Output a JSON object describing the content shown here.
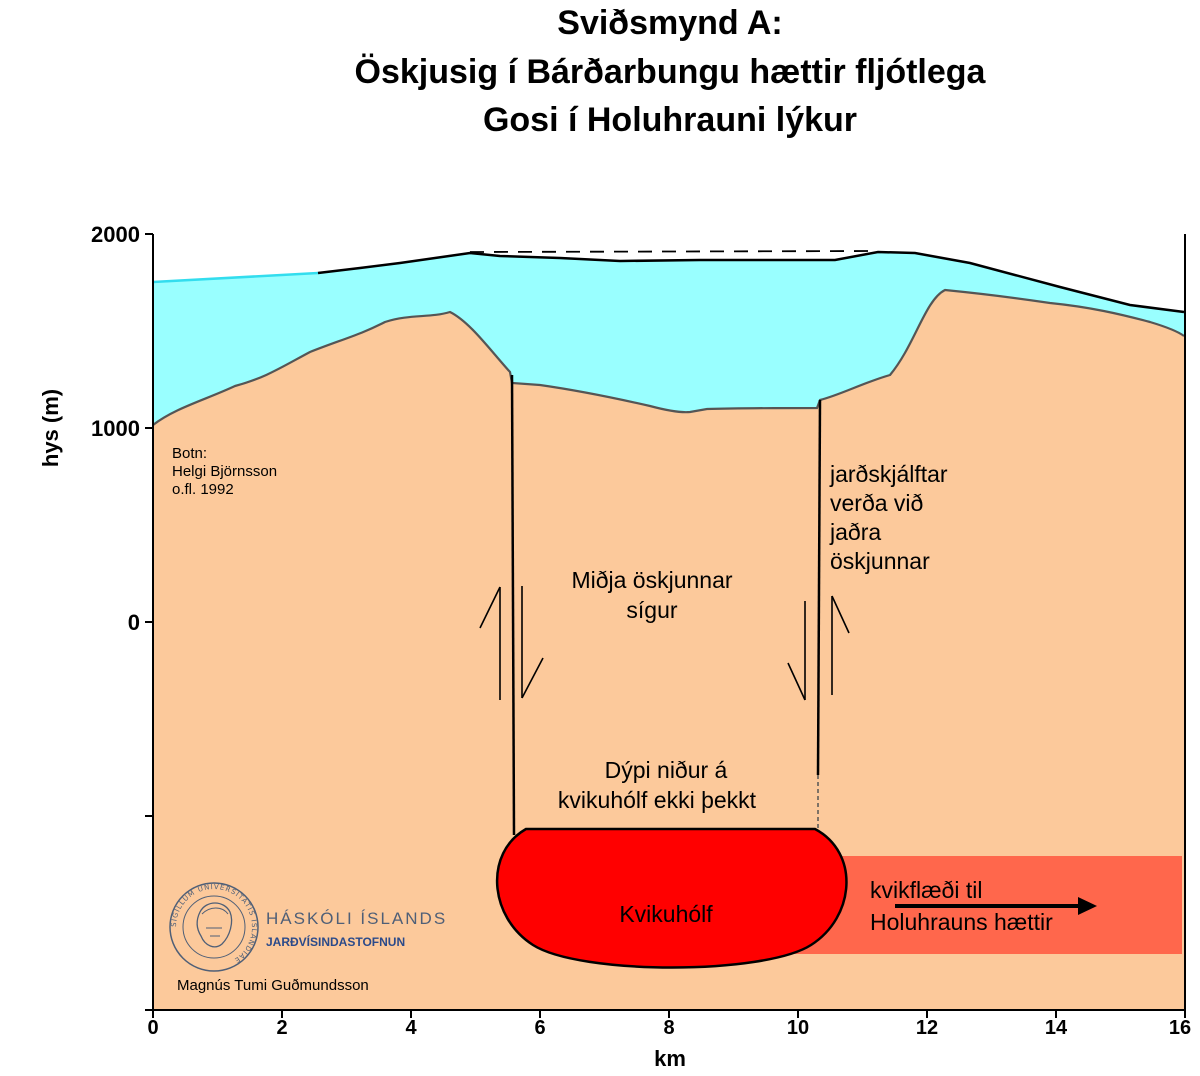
{
  "title": {
    "line1": "Sviðsmynd A:",
    "line2": "Öskjusig í Bárðarbungu hættir fljótlega",
    "line3": "Gosi í Holuhrauni lýkur"
  },
  "axes": {
    "ylabel": "hys (m)",
    "xlabel": "km",
    "yticks": [
      "2000",
      "1000",
      "0"
    ],
    "xticks": [
      "0",
      "2",
      "4",
      "6",
      "8",
      "10",
      "12",
      "14",
      "16"
    ]
  },
  "labels": {
    "source": [
      "Botn:",
      "Helgi Björnsson",
      "o.fl. 1992"
    ],
    "earthquakes": [
      "jarðskjálftar",
      "verða við",
      "jaðra",
      "öskjunnar"
    ],
    "subsidence": [
      "Miðja öskjunnar",
      "sígur"
    ],
    "depth": [
      "Dýpi niður á",
      "kvikuhólf ekki þekkt"
    ],
    "chamber": "Kvikuhólf",
    "flow": [
      "kvikflæði til",
      "Holuhrauns hættir"
    ],
    "author": "Magnús Tumi Guðmundsson"
  },
  "logo": {
    "name": "HÁSKÓLI ÍSLANDS",
    "institute": "JARÐVÍSINDASTOFNUN",
    "seal_text": "SIGILLUM UNIVERSITATIS ISLANDIAE"
  },
  "colors": {
    "ice": "#99ffff",
    "ice_edge": "#33ddee",
    "bedrock": "#fcc99b",
    "chamber": "#ff0000",
    "flow_band": "#ff674c",
    "outline": "#000000",
    "logo_text": "#4f5f77"
  }
}
